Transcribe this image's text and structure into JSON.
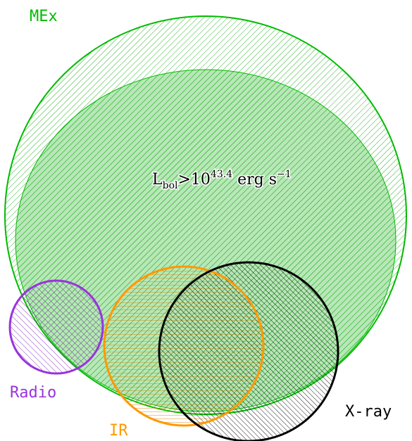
{
  "sets": [
    {
      "label": "MEx"
    },
    {
      "label": "Radio"
    },
    {
      "label": "IR"
    },
    {
      "label": "X-ray"
    }
  ],
  "annotation": {
    "base": "L",
    "sub": "bol",
    "mid": ">10",
    "sup": "43.4",
    "unit": " erg s",
    "unit_sup": "−1"
  }
}
